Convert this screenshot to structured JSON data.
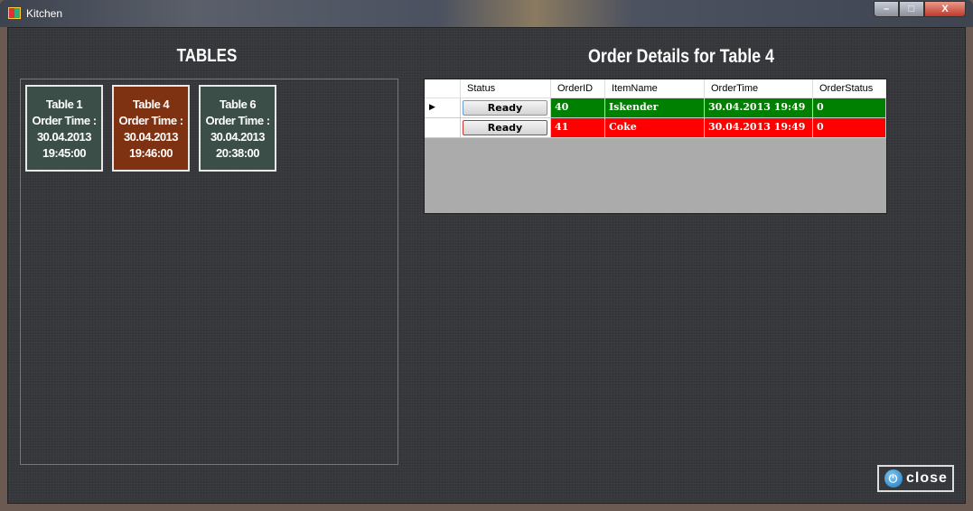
{
  "window": {
    "title": "Kitchen",
    "minimize": "–",
    "maximize": "□",
    "close": "X"
  },
  "tables_panel": {
    "title": "TABLES",
    "cards": [
      {
        "table": "Table 1",
        "label": "Order Time :",
        "date": "30.04.2013",
        "time": "19:45:00",
        "color": "#3b4e48"
      },
      {
        "table": "Table 4",
        "label": "Order Time :",
        "date": "30.04.2013",
        "time": "19:46:00",
        "color": "#7f3212",
        "selected": true
      },
      {
        "table": "Table 6",
        "label": "Order Time :",
        "date": "30.04.2013",
        "time": "20:38:00",
        "color": "#3b4e48"
      }
    ]
  },
  "order_details": {
    "title": "Order Details for Table 4",
    "columns": [
      "Status",
      "OrderID",
      "ItemName",
      "OrderTime",
      "OrderStatus"
    ],
    "rows": [
      {
        "status": "Ready",
        "order_id": "40",
        "item": "Iskender",
        "time": "30.04.2013 19:49",
        "order_status": "0",
        "color": "#008000",
        "current": true
      },
      {
        "status": "Ready",
        "order_id": "41",
        "item": "Coke",
        "time": "30.04.2013 19:49",
        "order_status": "0",
        "color": "#ff0000"
      }
    ]
  },
  "close_button": {
    "label": "close",
    "icon": "power-icon"
  }
}
